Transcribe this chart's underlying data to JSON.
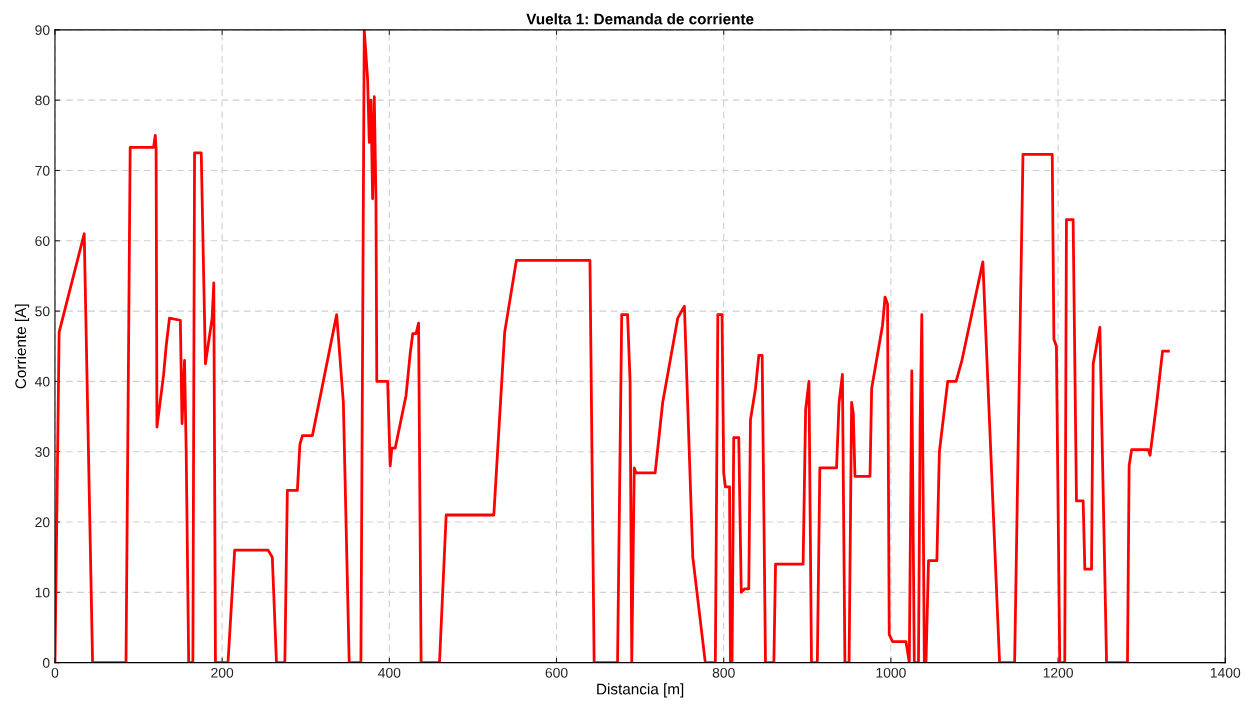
{
  "chart_data": {
    "type": "line",
    "title": "Vuelta 1: Demanda de corriente",
    "xlabel": "Distancia [m]",
    "ylabel": "Corriente [A]",
    "xlim": [
      0,
      1400
    ],
    "xticks": [
      0,
      200,
      400,
      600,
      800,
      1000,
      1200,
      1400
    ],
    "ylim": [
      0,
      90
    ],
    "yticks": [
      0,
      10,
      20,
      30,
      40,
      50,
      60,
      70,
      80,
      90
    ],
    "grid": true,
    "line_style": "solid",
    "marker": "none",
    "series": [
      {
        "color": "#ff0000",
        "x": [
          0,
          5,
          35,
          45,
          85,
          90,
          118,
          120,
          121,
          122,
          130,
          133,
          137,
          150,
          152,
          155,
          157,
          160,
          165,
          167,
          175,
          180,
          188,
          190,
          192,
          200,
          207,
          215,
          255,
          260,
          265,
          275,
          278,
          290,
          293,
          296,
          308,
          337,
          345,
          352,
          366,
          370,
          374,
          376,
          378,
          380,
          382,
          384,
          385,
          398,
          401,
          403,
          407,
          420,
          425,
          428,
          432,
          435,
          438,
          460,
          468,
          525,
          538,
          552,
          640,
          645,
          673,
          678,
          685,
          688,
          690,
          693,
          695,
          718,
          727,
          745,
          753,
          763,
          778,
          790,
          793,
          798,
          800,
          802,
          807,
          808,
          810,
          812,
          818,
          821,
          825,
          830,
          832,
          838,
          842,
          846,
          850,
          860,
          862,
          895,
          898,
          902,
          905,
          912,
          915,
          935,
          938,
          942,
          945,
          950,
          953,
          955,
          957,
          975,
          977,
          990,
          993,
          996,
          998,
          1002,
          1018,
          1022,
          1025,
          1028,
          1033,
          1035,
          1037,
          1040,
          1042,
          1045,
          1055,
          1058,
          1068,
          1078,
          1085,
          1110,
          1130,
          1148,
          1158,
          1193,
          1195,
          1198,
          1202,
          1208,
          1210,
          1218,
          1222,
          1230,
          1232,
          1240,
          1242,
          1250,
          1258,
          1283,
          1285,
          1288,
          1308,
          1310,
          1318,
          1325,
          1332
        ],
        "values": [
          0,
          47,
          61,
          0,
          0,
          73.3,
          73.3,
          75,
          73,
          33.5,
          41,
          45,
          49,
          48.7,
          34,
          43,
          30,
          0,
          0,
          72.5,
          72.5,
          42.5,
          49,
          54,
          0,
          0,
          0,
          16,
          16,
          15,
          0,
          0,
          24.5,
          24.5,
          31,
          32.3,
          32.3,
          49.5,
          37,
          0,
          0,
          90,
          83,
          74,
          80,
          66,
          80.5,
          66,
          40,
          40,
          28,
          30.5,
          30.5,
          38,
          44,
          46.8,
          46.8,
          48.3,
          0,
          0,
          21,
          21,
          47,
          57.2,
          57.2,
          0,
          0,
          49.5,
          49.5,
          40,
          0,
          27.7,
          27,
          27,
          37,
          49,
          50.7,
          15,
          0,
          0,
          49.5,
          49.5,
          27,
          25,
          25,
          0,
          0,
          32,
          32,
          10,
          10.5,
          10.5,
          34.5,
          39,
          43.7,
          43.7,
          0,
          0,
          14,
          14,
          36,
          40,
          0,
          0,
          27.7,
          27.7,
          37,
          41,
          0,
          0,
          37,
          35.5,
          26.5,
          26.5,
          39,
          48,
          52,
          51,
          4,
          3,
          3,
          0,
          41.5,
          0,
          0,
          34,
          49.5,
          0,
          0,
          14.5,
          14.5,
          30,
          40,
          40,
          43,
          57,
          0,
          0,
          72.3,
          72.3,
          46,
          45,
          0,
          0,
          63,
          63,
          23,
          23,
          13.3,
          13.3,
          42.5,
          47.7,
          0,
          0,
          28,
          30.3,
          30.3,
          29.5,
          37,
          44.3,
          44.3
        ]
      }
    ]
  }
}
